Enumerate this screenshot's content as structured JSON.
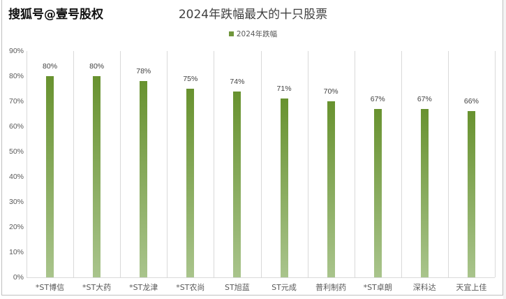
{
  "watermark": "搜狐号@壹号股权",
  "chart_data": {
    "type": "bar",
    "title": "2024年跌幅最大的十只股票",
    "legend": [
      {
        "name": "2024年跌幅",
        "color": "#70963c"
      }
    ],
    "legend_position": "top",
    "categories": [
      "*ST博信",
      "*ST大药",
      "*ST龙津",
      "*ST农尚",
      "ST旭蓝",
      "ST元成",
      "普利制药",
      "*ST卓朗",
      "深科达",
      "天宜上佳"
    ],
    "series": [
      {
        "name": "2024年跌幅",
        "values": [
          80,
          80,
          78,
          75,
          74,
          71,
          70,
          67,
          67,
          66
        ]
      }
    ],
    "value_labels": [
      "80%",
      "80%",
      "78%",
      "75%",
      "74%",
      "71%",
      "70%",
      "67%",
      "67%",
      "66%"
    ],
    "xlabel": "",
    "ylabel": "",
    "ylim": [
      0,
      90
    ],
    "yticks": [
      "0%",
      "10%",
      "20%",
      "30%",
      "40%",
      "50%",
      "60%",
      "70%",
      "80%",
      "90%"
    ],
    "grid": {
      "vertical_category_separators": true,
      "horizontal": false
    },
    "colors": {
      "bar_top": "#68922f",
      "bar_bottom": "#a9c48c",
      "gridline": "#d9d9d9"
    }
  }
}
